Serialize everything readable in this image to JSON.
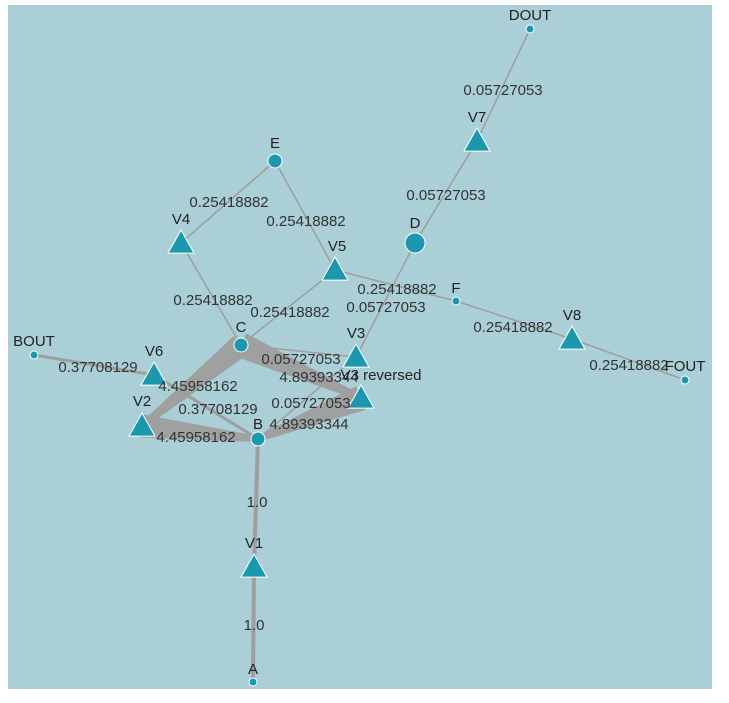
{
  "graph": {
    "colors": {
      "background": "#aacfd6",
      "node_fill": "#1b98ae",
      "node_stroke": "#ffffff",
      "edge": "#9e9e9e",
      "label": "#333333"
    },
    "nodes": [
      {
        "id": "A",
        "label": "A",
        "shape": "circle",
        "size": "small"
      },
      {
        "id": "B",
        "label": "B",
        "shape": "circle",
        "size": "medium"
      },
      {
        "id": "C",
        "label": "C",
        "shape": "circle",
        "size": "medium"
      },
      {
        "id": "D",
        "label": "D",
        "shape": "circle",
        "size": "large"
      },
      {
        "id": "E",
        "label": "E",
        "shape": "circle",
        "size": "medium"
      },
      {
        "id": "F",
        "label": "F",
        "shape": "circle",
        "size": "small"
      },
      {
        "id": "BOUT",
        "label": "BOUT",
        "shape": "circle",
        "size": "small"
      },
      {
        "id": "DOUT",
        "label": "DOUT",
        "shape": "circle",
        "size": "small"
      },
      {
        "id": "FOUT",
        "label": "FOUT",
        "shape": "circle",
        "size": "small"
      },
      {
        "id": "V1",
        "label": "V1",
        "shape": "triangle"
      },
      {
        "id": "V2",
        "label": "V2",
        "shape": "triangle"
      },
      {
        "id": "V3",
        "label": "V3",
        "shape": "triangle"
      },
      {
        "id": "V3r",
        "label": "V3 reversed",
        "shape": "triangle"
      },
      {
        "id": "V4",
        "label": "V4",
        "shape": "triangle"
      },
      {
        "id": "V5",
        "label": "V5",
        "shape": "triangle"
      },
      {
        "id": "V6",
        "label": "V6",
        "shape": "triangle"
      },
      {
        "id": "V7",
        "label": "V7",
        "shape": "triangle"
      },
      {
        "id": "V8",
        "label": "V8",
        "shape": "triangle"
      }
    ],
    "edges": [
      {
        "source": "A",
        "target": "V1",
        "label": "1.0",
        "weight": 1.0
      },
      {
        "source": "V1",
        "target": "B",
        "label": "1.0",
        "weight": 1.0
      },
      {
        "source": "B",
        "target": "V2",
        "label": "4.45958162",
        "weight": 4.45958162
      },
      {
        "source": "V2",
        "target": "C",
        "label": "4.45958162",
        "weight": 4.45958162
      },
      {
        "source": "B",
        "target": "V6",
        "label": "0.37708129",
        "weight": 0.37708129
      },
      {
        "source": "V6",
        "target": "BOUT",
        "label": "0.37708129",
        "weight": 0.37708129
      },
      {
        "source": "B",
        "target": "V3r",
        "label": "4.89393344",
        "weight": 4.89393344
      },
      {
        "source": "V3r",
        "target": "C",
        "label": "4.89393344",
        "weight": 4.89393344
      },
      {
        "source": "C",
        "target": "V3",
        "label": "0.05727053",
        "weight": 0.05727053
      },
      {
        "source": "V3",
        "target": "B",
        "label": "0.05727053",
        "weight": 0.05727053
      },
      {
        "source": "C",
        "target": "V4",
        "label": "0.25418882",
        "weight": 0.25418882
      },
      {
        "source": "V4",
        "target": "E",
        "label": "0.25418882",
        "weight": 0.25418882
      },
      {
        "source": "E",
        "target": "V5",
        "label": "0.25418882",
        "weight": 0.25418882
      },
      {
        "source": "V5",
        "target": "C",
        "label": "0.25418882",
        "weight": 0.25418882
      },
      {
        "source": "V5",
        "target": "F",
        "label": "0.25418882",
        "weight": 0.25418882
      },
      {
        "source": "F",
        "target": "V8",
        "label": "0.25418882",
        "weight": 0.25418882
      },
      {
        "source": "V8",
        "target": "FOUT",
        "label": "0.25418882",
        "weight": 0.25418882
      },
      {
        "source": "V3",
        "target": "D",
        "label": "0.05727053",
        "weight": 0.05727053
      },
      {
        "source": "D",
        "target": "V7",
        "label": "0.05727053",
        "weight": 0.05727053
      },
      {
        "source": "V7",
        "target": "DOUT",
        "label": "0.05727053",
        "weight": 0.05727053
      }
    ]
  }
}
